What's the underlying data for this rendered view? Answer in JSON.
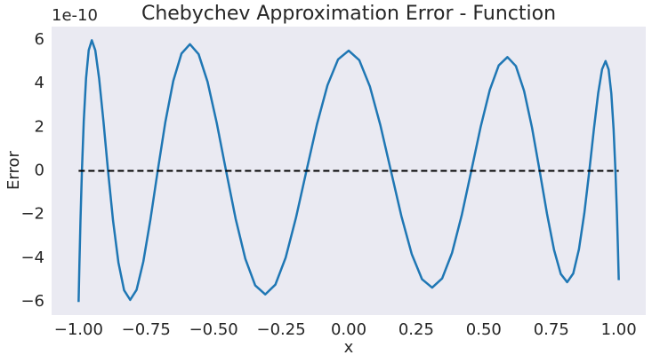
{
  "chart_data": {
    "type": "line",
    "title": "Chebychev Approximation Error - Function",
    "xlabel": "x",
    "ylabel": "Error",
    "offset_label": "1e-10",
    "background": "#eaeaf2",
    "grid": false,
    "xlim": [
      -1.1,
      1.1
    ],
    "ylim": [
      -6.6,
      6.6
    ],
    "xticks": [
      {
        "value": -1,
        "label": "−1.00"
      },
      {
        "value": -0.75,
        "label": "−0.75"
      },
      {
        "value": -0.5,
        "label": "−0.50"
      },
      {
        "value": -0.25,
        "label": "−0.25"
      },
      {
        "value": 0,
        "label": "0.00"
      },
      {
        "value": 0.25,
        "label": "0.25"
      },
      {
        "value": 0.5,
        "label": "0.50"
      },
      {
        "value": 0.75,
        "label": "0.75"
      },
      {
        "value": 1,
        "label": "1.00"
      }
    ],
    "yticks": [
      {
        "value": -6,
        "label": "−6"
      },
      {
        "value": -4,
        "label": "−4"
      },
      {
        "value": -2,
        "label": "−2"
      },
      0,
      2,
      4,
      6
    ],
    "series": [
      {
        "color": "#1f77b4",
        "dashed": false,
        "x": [
          -1,
          -0.9992,
          -0.9969,
          -0.9931,
          -0.9877,
          -0.9808,
          -0.9724,
          -0.9625,
          -0.9511,
          -0.9382,
          -0.9239,
          -0.9081,
          -0.891,
          -0.8725,
          -0.8526,
          -0.8315,
          -0.809,
          -0.7853,
          -0.7604,
          -0.7343,
          -0.7071,
          -0.6788,
          -0.6494,
          -0.6191,
          -0.5878,
          -0.5556,
          -0.5225,
          -0.4886,
          -0.454,
          -0.4187,
          -0.3827,
          -0.3461,
          -0.309,
          -0.2714,
          -0.2334,
          -0.1951,
          -0.1564,
          -0.1175,
          -0.0785,
          -0.0393,
          0,
          0.0393,
          0.0785,
          0.1175,
          0.1564,
          0.1951,
          0.2334,
          0.2714,
          0.309,
          0.3461,
          0.3827,
          0.4187,
          0.454,
          0.4886,
          0.5225,
          0.5556,
          0.5878,
          0.6191,
          0.6494,
          0.6788,
          0.7071,
          0.7343,
          0.7604,
          0.7853,
          0.809,
          0.8315,
          0.8526,
          0.8725,
          0.891,
          0.9081,
          0.9239,
          0.9382,
          0.9511,
          0.9625,
          0.9724,
          0.9808,
          0.9877,
          0.9931,
          0.9969,
          0.9992,
          1
        ],
        "values": [
          -6,
          -5.543,
          -4.242,
          -2.295,
          0,
          2.293,
          4.233,
          5.526,
          5.976,
          5.515,
          4.216,
          2.279,
          0,
          -2.272,
          -4.191,
          -5.466,
          -5.905,
          -5.444,
          -4.158,
          -2.245,
          0,
          2.235,
          4.119,
          5.367,
          5.794,
          5.338,
          4.074,
          2.198,
          0,
          -2.185,
          -4.024,
          -5.241,
          -5.655,
          -5.207,
          -3.972,
          -2.142,
          0,
          2.127,
          3.917,
          5.1,
          5.5,
          5.063,
          3.861,
          2.082,
          0,
          -2.068,
          -3.807,
          -4.956,
          -5.345,
          -4.921,
          -3.754,
          -2.025,
          0,
          2.011,
          3.704,
          4.825,
          5.206,
          4.795,
          3.66,
          1.975,
          0,
          -1.964,
          -3.62,
          -4.719,
          -5.095,
          -4.697,
          -3.588,
          -1.938,
          0,
          1.931,
          3.562,
          4.648,
          5.024,
          4.637,
          3.545,
          1.917,
          0,
          -1.915,
          -3.537,
          -4.62,
          -5
        ]
      },
      {
        "color": "#000000",
        "dashed": true,
        "x": [
          -1,
          1
        ],
        "values": [
          0,
          0
        ]
      }
    ]
  }
}
